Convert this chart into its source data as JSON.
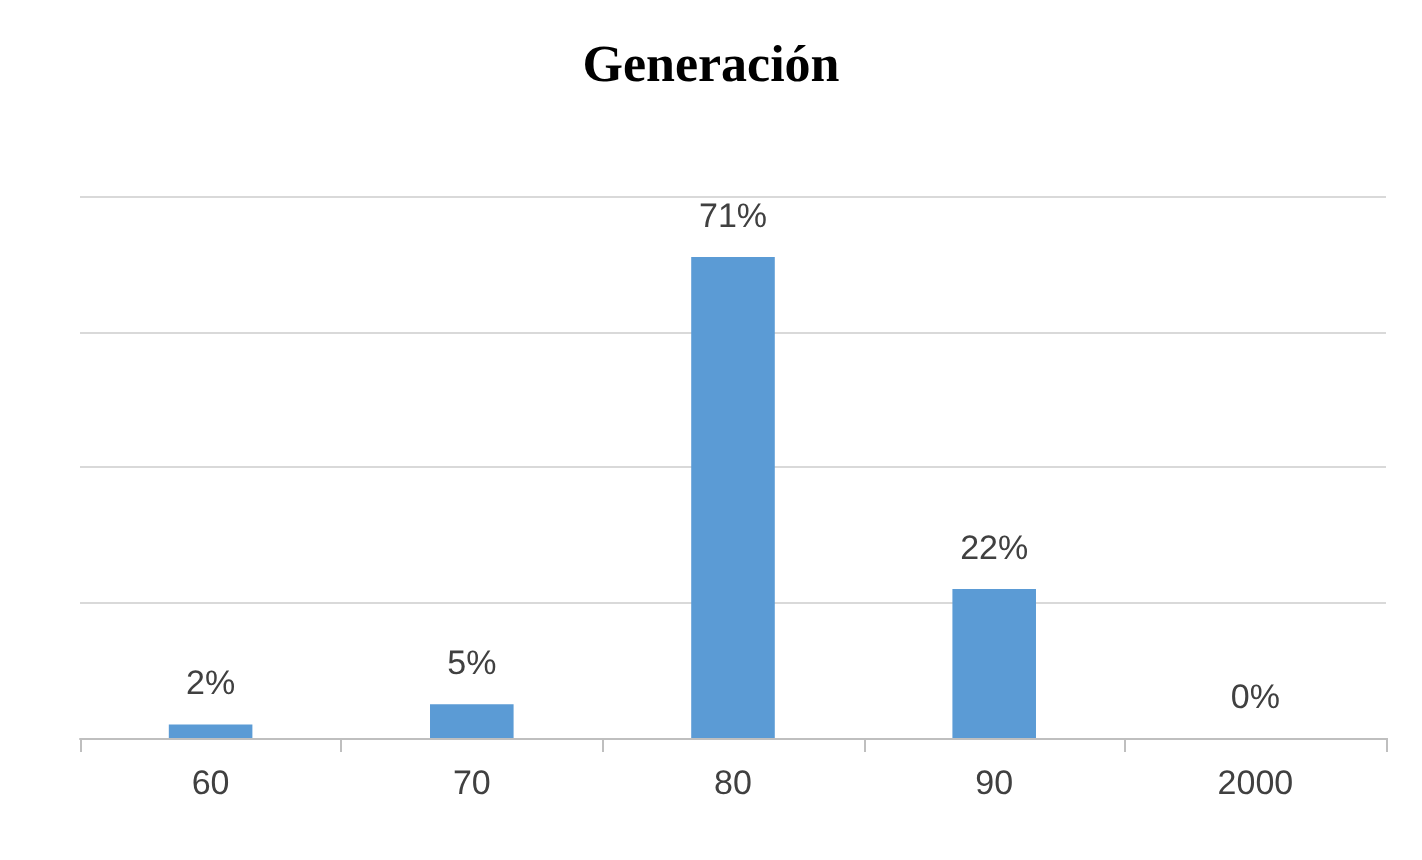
{
  "chart_data": {
    "type": "bar",
    "title": "Generación",
    "categories": [
      "60",
      "70",
      "80",
      "90",
      "2000"
    ],
    "values": [
      2,
      5,
      71,
      22,
      0
    ],
    "value_labels": [
      "2%",
      "5%",
      "71%",
      "22%",
      "0%"
    ],
    "color": "#5b9bd5",
    "ylim": [
      0,
      80
    ],
    "yticks": [
      {
        "value": 0,
        "label": null
      },
      {
        "value": 20,
        "label": null
      },
      {
        "value": 40,
        "label": null
      },
      {
        "value": 60,
        "label": null
      },
      {
        "value": 80,
        "label": null
      }
    ],
    "grid": "y",
    "tick_labels": "x"
  }
}
